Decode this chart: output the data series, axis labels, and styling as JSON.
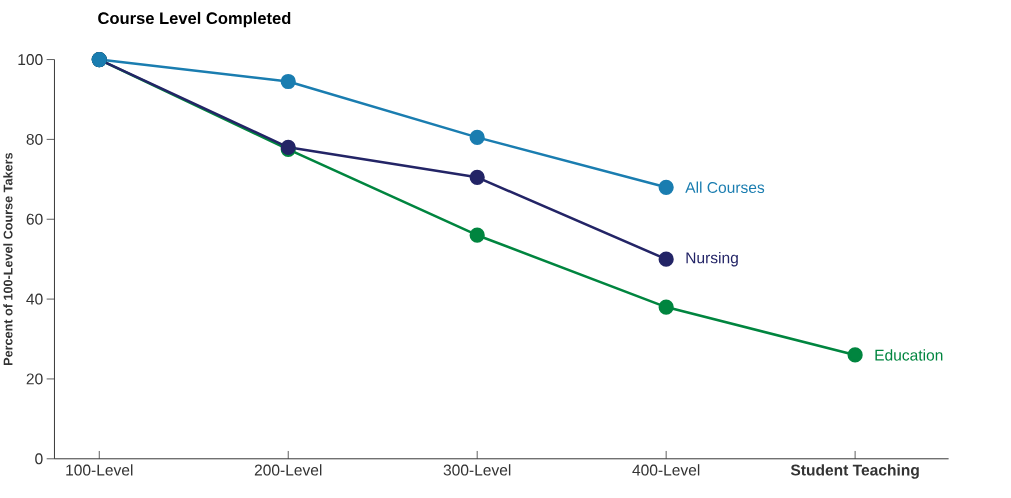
{
  "chart_data": {
    "type": "line",
    "title": "Course Level Completed",
    "ylabel": "Percent of 100-Level Course Takers",
    "categories": [
      "100-Level",
      "200-Level",
      "300-Level",
      "400-Level",
      "**Student Teaching**"
    ],
    "series": [
      {
        "name": "All Courses",
        "color": "#1a7db0",
        "values": [
          100,
          94.5,
          80.5,
          68,
          null
        ]
      },
      {
        "name": "Nursing",
        "color": "#232466",
        "values": [
          100,
          78,
          70.5,
          50,
          null
        ]
      },
      {
        "name": "Education",
        "color": "#00853f",
        "values": [
          100,
          77.5,
          56,
          38,
          26
        ]
      }
    ],
    "ylim": [
      0,
      100
    ],
    "yticks": [
      0,
      20,
      40,
      60,
      80,
      100
    ],
    "grid": false,
    "legend": false,
    "marker": "circle",
    "line_style": "solid"
  }
}
